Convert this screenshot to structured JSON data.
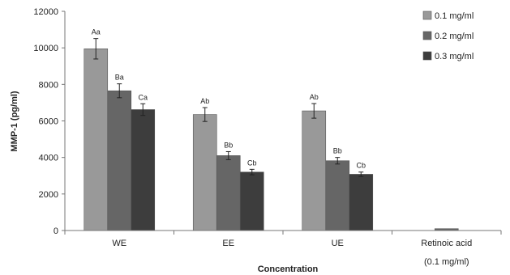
{
  "chart_data": {
    "type": "bar",
    "xlabel": "Concentration",
    "ylabel": "MMP-1   (pg/ml)",
    "ylim": [
      0,
      12000
    ],
    "yticks": [
      0,
      2000,
      4000,
      6000,
      8000,
      10000,
      12000
    ],
    "categories": [
      "WE",
      "EE",
      "UE",
      "Retinoic acid"
    ],
    "category_sublabels": [
      "",
      "",
      "",
      "(0.1 mg/ml)"
    ],
    "legend_position": "top-right",
    "grid": false,
    "series": [
      {
        "name": "0.1 mg/ml",
        "color": "#999999",
        "values": [
          9950,
          6350,
          6550,
          null
        ],
        "errors": [
          560,
          380,
          400,
          null
        ],
        "labels": [
          "Aa",
          "Ab",
          "Ab",
          ""
        ]
      },
      {
        "name": "0.2 mg/ml",
        "color": "#666666",
        "values": [
          7650,
          4100,
          3820,
          100
        ],
        "errors": [
          380,
          220,
          180,
          null
        ],
        "labels": [
          "Ba",
          "Bb",
          "Bb",
          ""
        ]
      },
      {
        "name": "0.3 mg/ml",
        "color": "#3d3d3d",
        "values": [
          6620,
          3200,
          3080,
          null
        ],
        "errors": [
          320,
          150,
          120,
          null
        ],
        "labels": [
          "Ca",
          "Cb",
          "Cb",
          ""
        ]
      }
    ]
  }
}
